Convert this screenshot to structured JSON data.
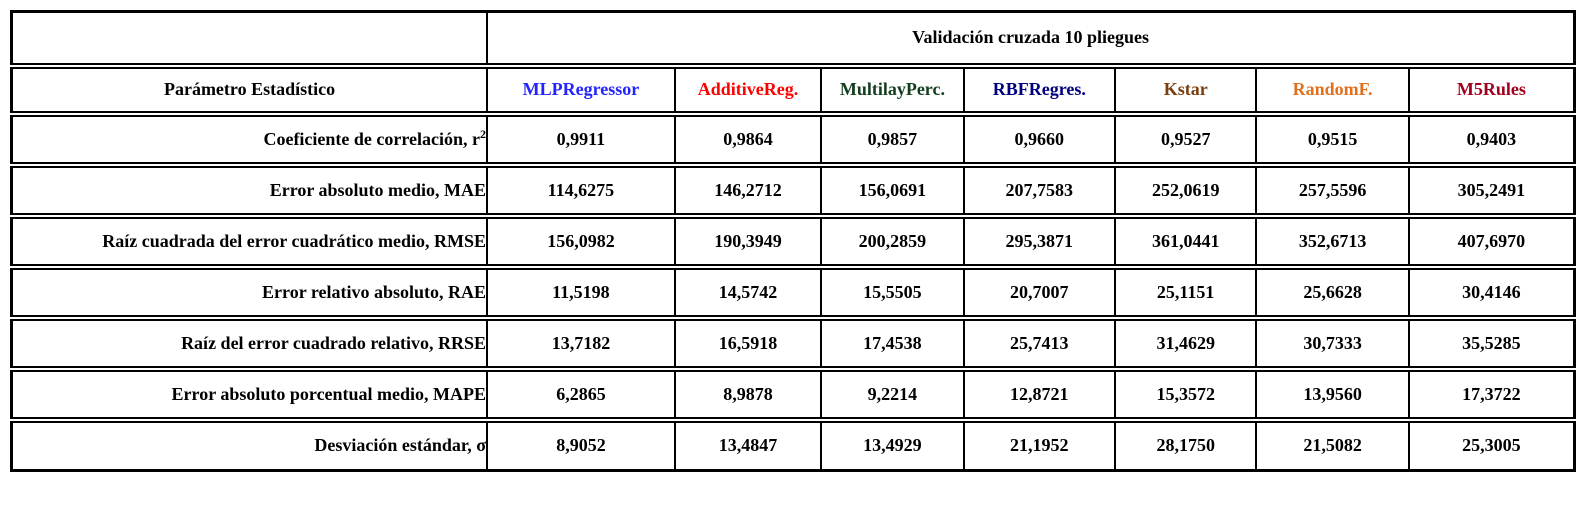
{
  "table": {
    "top_header": "Validación cruzada 10 pliegues",
    "param_header": "Parámetro Estadístico",
    "models": [
      {
        "label": "MLPRegressor",
        "color": "#2323FF"
      },
      {
        "label": "AdditiveReg.",
        "color": "#FF0000"
      },
      {
        "label": "MultilayPerc.",
        "color": "#123D1E"
      },
      {
        "label": "RBFRegres.",
        "color": "#00007F"
      },
      {
        "label": "Kstar",
        "color": "#7A3E0E"
      },
      {
        "label": "RandomF.",
        "color": "#E0701E"
      },
      {
        "label": "M5Rules",
        "color": "#A2001D"
      }
    ],
    "rows": [
      {
        "label": "Coeficiente de correlación, r",
        "label_sup": "2",
        "values": [
          "0,9911",
          "0,9864",
          "0,9857",
          "0,9660",
          "0,9527",
          "0,9515",
          "0,9403"
        ]
      },
      {
        "label": "Error absoluto medio, MAE",
        "values": [
          "114,6275",
          "146,2712",
          "156,0691",
          "207,7583",
          "252,0619",
          "257,5596",
          "305,2491"
        ]
      },
      {
        "label": "Raíz cuadrada del error cuadrático medio, RMSE",
        "values": [
          "156,0982",
          "190,3949",
          "200,2859",
          "295,3871",
          "361,0441",
          "352,6713",
          "407,6970"
        ]
      },
      {
        "label": "Error relativo absoluto, RAE",
        "values": [
          "11,5198",
          "14,5742",
          "15,5505",
          "20,7007",
          "25,1151",
          "25,6628",
          "30,4146"
        ]
      },
      {
        "label": "Raíz del error cuadrado relativo, RRSE",
        "values": [
          "13,7182",
          "16,5918",
          "17,4538",
          "25,7413",
          "31,4629",
          "30,7333",
          "35,5285"
        ]
      },
      {
        "label": "Error absoluto porcentual medio, MAPE",
        "values": [
          "6,2865",
          "8,9878",
          "9,2214",
          "12,8721",
          "15,3572",
          "13,9560",
          "17,3722"
        ]
      },
      {
        "label": "Desviación estándar, σ",
        "values": [
          "8,9052",
          "13,4847",
          "13,4929",
          "21,1952",
          "28,1750",
          "21,5082",
          "25,3005"
        ]
      }
    ]
  }
}
